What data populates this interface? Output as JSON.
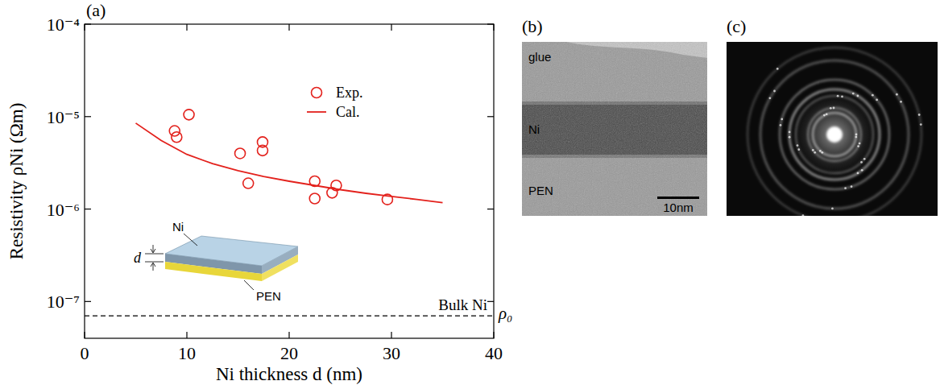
{
  "chart_data": {
    "type": "scatter",
    "title": "(a)",
    "x_label": "Ni thickness d (nm)",
    "y_label": "Resistivity ρNi (Ωm)",
    "log": "y",
    "xlim": [
      0,
      40
    ],
    "xticks": [
      0,
      10,
      20,
      30,
      40
    ],
    "ylim": [
      4e-08,
      0.0001
    ],
    "yticks": [
      {
        "value": 0.0001,
        "label": "10⁻⁴"
      },
      {
        "value": 1e-05,
        "label": "10⁻⁵"
      },
      {
        "value": 1e-06,
        "label": "10⁻⁶"
      },
      {
        "value": 1e-07,
        "label": "10⁻⁷"
      }
    ],
    "legend": "top-right",
    "series": [
      {
        "name": "Exp.",
        "type": "scatter",
        "marker": "circle",
        "color": "#e3211c",
        "x": [
          8.8,
          9.0,
          10.2,
          15.2,
          16.0,
          17.4,
          17.4,
          22.5,
          22.5,
          24.2,
          24.6,
          29.6
        ],
        "values": [
          7e-06,
          6e-06,
          1.05e-05,
          4e-06,
          1.9e-06,
          5.3e-06,
          4.3e-06,
          2e-06,
          1.3e-06,
          1.5e-06,
          1.8e-06,
          1.27e-06
        ]
      },
      {
        "name": "Cal.",
        "type": "line",
        "color": "#e3211c",
        "x": [
          5,
          7.5,
          10,
          12.5,
          15,
          17.5,
          20,
          22.5,
          25,
          27.5,
          30,
          32.5,
          35
        ],
        "values": [
          8.5e-06,
          5.5e-06,
          3.9e-06,
          3.1e-06,
          2.6e-06,
          2.25e-06,
          2e-06,
          1.8e-06,
          1.62e-06,
          1.48e-06,
          1.37e-06,
          1.27e-06,
          1.17e-06
        ]
      }
    ],
    "reference_line": {
      "label": "Bulk Ni",
      "symbol": "ρ₀",
      "value": 7e-08,
      "line_style": "dashed"
    },
    "annotations": [
      "Ni",
      "d",
      "PEN"
    ]
  },
  "images": [
    {
      "label": "(b)",
      "texts": [
        "glue",
        "Ni",
        "PEN"
      ],
      "scale_bar": "10nm"
    },
    {
      "label": "(c)"
    }
  ]
}
